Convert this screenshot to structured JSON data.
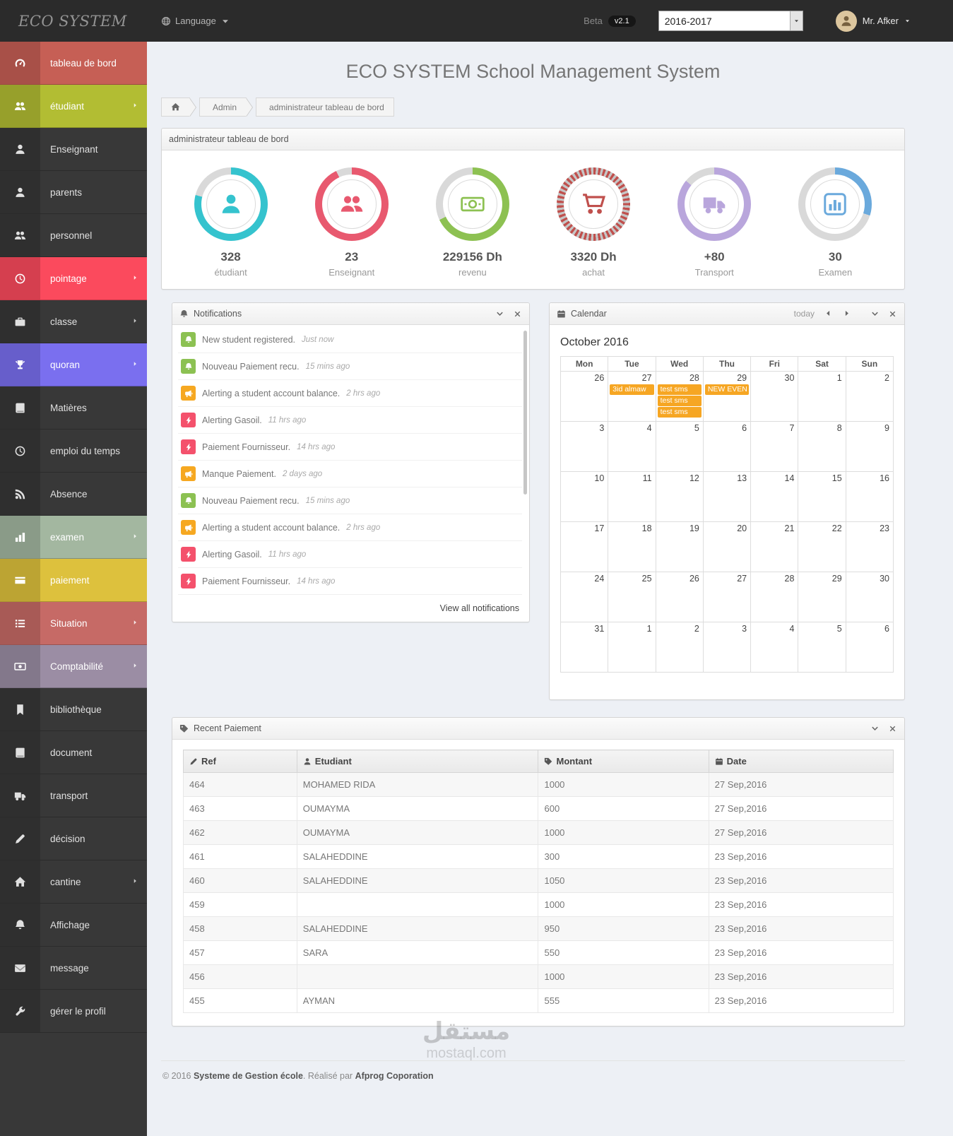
{
  "topbar": {
    "logo": "ECO SYSTEM",
    "language_label": "Language",
    "beta_label": "Beta",
    "version_badge": "v2.1",
    "year_select": "2016-2017",
    "user_name": "Mr. Afker"
  },
  "page": {
    "title": "ECO SYSTEM School Management System",
    "breadcrumb": [
      "Admin",
      "administrateur tableau de bord"
    ],
    "footer_prefix": "© 2016 ",
    "footer_bold1": "Systeme de Gestion école",
    "footer_mid": ". Réalisé par ",
    "footer_bold2": "Afprog Coporation",
    "watermark_ar": "مستقل",
    "watermark_en": "mostaql.com"
  },
  "sidebar": {
    "items": [
      {
        "label": "tableau de bord",
        "icon": "gauge",
        "bg": "#c65f55",
        "arrow": false
      },
      {
        "label": "étudiant",
        "icon": "users",
        "bg": "#b2bd33",
        "arrow": true
      },
      {
        "label": "Enseignant",
        "icon": "user",
        "bg": "",
        "arrow": false
      },
      {
        "label": "parents",
        "icon": "user",
        "bg": "",
        "arrow": false
      },
      {
        "label": "personnel",
        "icon": "users",
        "bg": "",
        "arrow": false
      },
      {
        "label": "pointage",
        "icon": "clock",
        "bg": "#fb4a5d",
        "arrow": true
      },
      {
        "label": "classe",
        "icon": "briefcase",
        "bg": "",
        "arrow": true
      },
      {
        "label": "quoran",
        "icon": "trophy",
        "bg": "#7a6fef",
        "arrow": true
      },
      {
        "label": "Matières",
        "icon": "book",
        "bg": "",
        "arrow": false
      },
      {
        "label": "emploi du temps",
        "icon": "clock",
        "bg": "",
        "arrow": false
      },
      {
        "label": "Absence",
        "icon": "rss",
        "bg": "",
        "arrow": false
      },
      {
        "label": "examen",
        "icon": "chart",
        "bg": "#a3b7a0",
        "arrow": true
      },
      {
        "label": "paiement",
        "icon": "card",
        "bg": "#ddc13d",
        "arrow": false
      },
      {
        "label": "Situation",
        "icon": "list",
        "bg": "#c66a66",
        "arrow": true
      },
      {
        "label": "Comptabilité",
        "icon": "money",
        "bg": "#9b8da4",
        "arrow": true
      },
      {
        "label": "bibliothèque",
        "icon": "bookmark",
        "bg": "",
        "arrow": false
      },
      {
        "label": "document",
        "icon": "book",
        "bg": "",
        "arrow": false
      },
      {
        "label": "transport",
        "icon": "truck",
        "bg": "",
        "arrow": false
      },
      {
        "label": "décision",
        "icon": "pen",
        "bg": "",
        "arrow": false
      },
      {
        "label": "cantine",
        "icon": "home",
        "bg": "",
        "arrow": true
      },
      {
        "label": "Affichage",
        "icon": "bell",
        "bg": "",
        "arrow": false
      },
      {
        "label": "message",
        "icon": "envelope",
        "bg": "",
        "arrow": false
      },
      {
        "label": "gérer le profil",
        "icon": "wrench",
        "bg": "",
        "arrow": false
      }
    ]
  },
  "dashboard": {
    "panel_title": "administrateur tableau de bord",
    "stats": [
      {
        "value": "328",
        "label": "étudiant",
        "icon": "user",
        "color": "#35c3ce",
        "pct": 79
      },
      {
        "value": "23",
        "label": "Enseignant",
        "icon": "users",
        "color": "#e8596f",
        "pct": 93
      },
      {
        "value": "229156 Dh",
        "label": "revenu",
        "icon": "banknote",
        "color": "#8dc152",
        "pct": 68
      },
      {
        "value": "3320 Dh",
        "label": "achat",
        "icon": "cart",
        "color": "#c0504d",
        "pct": 100,
        "pattern": true
      },
      {
        "value": "+80",
        "label": "Transport",
        "icon": "truck",
        "color": "#b9a6dc",
        "pct": 86
      },
      {
        "value": "30",
        "label": "Examen",
        "icon": "chartboard",
        "color": "#6aa9dc",
        "pct": 30
      }
    ]
  },
  "notifications": {
    "title": "Notifications",
    "view_all": "View all notifications",
    "items": [
      {
        "icon": "bell",
        "color": "#8cc152",
        "text": "New student registered.",
        "time": "Just now"
      },
      {
        "icon": "bell",
        "color": "#8cc152",
        "text": "Nouveau Paiement recu.",
        "time": "15 mins ago"
      },
      {
        "icon": "bullhorn",
        "color": "#f6a821",
        "text": "Alerting a student account balance.",
        "time": "2 hrs ago"
      },
      {
        "icon": "bolt",
        "color": "#f4516c",
        "text": "Alerting Gasoil.",
        "time": "11 hrs ago"
      },
      {
        "icon": "bolt",
        "color": "#f4516c",
        "text": "Paiement Fournisseur.",
        "time": "14 hrs ago"
      },
      {
        "icon": "bullhorn",
        "color": "#f6a821",
        "text": "Manque Paiement.",
        "time": "2 days ago"
      },
      {
        "icon": "bell",
        "color": "#8cc152",
        "text": "Nouveau Paiement recu.",
        "time": "15 mins ago"
      },
      {
        "icon": "bullhorn",
        "color": "#f6a821",
        "text": "Alerting a student account balance.",
        "time": "2 hrs ago"
      },
      {
        "icon": "bolt",
        "color": "#f4516c",
        "text": "Alerting Gasoil.",
        "time": "11 hrs ago"
      },
      {
        "icon": "bolt",
        "color": "#f4516c",
        "text": "Paiement Fournisseur.",
        "time": "14 hrs ago"
      }
    ]
  },
  "calendar": {
    "title": "Calendar",
    "today_label": "today",
    "month_label": "October 2016",
    "event_color": "#f6a623",
    "day_headers": [
      "Mon",
      "Tue",
      "Wed",
      "Thu",
      "Fri",
      "Sat",
      "Sun"
    ],
    "weeks": [
      [
        {
          "d": "26",
          "muted": true
        },
        {
          "d": "27",
          "muted": true,
          "ev": [
            "3id almaw"
          ]
        },
        {
          "d": "28",
          "muted": true,
          "ev": [
            "test sms",
            "test sms",
            "test sms"
          ]
        },
        {
          "d": "29",
          "muted": true,
          "ev": [
            "NEW EVEN"
          ]
        },
        {
          "d": "30",
          "muted": true
        },
        {
          "d": "1"
        },
        {
          "d": "2"
        }
      ],
      [
        {
          "d": "3"
        },
        {
          "d": "4"
        },
        {
          "d": "5"
        },
        {
          "d": "6"
        },
        {
          "d": "7"
        },
        {
          "d": "8"
        },
        {
          "d": "9"
        }
      ],
      [
        {
          "d": "10"
        },
        {
          "d": "11"
        },
        {
          "d": "12"
        },
        {
          "d": "13"
        },
        {
          "d": "14"
        },
        {
          "d": "15"
        },
        {
          "d": "16"
        }
      ],
      [
        {
          "d": "17"
        },
        {
          "d": "18"
        },
        {
          "d": "19"
        },
        {
          "d": "20"
        },
        {
          "d": "21"
        },
        {
          "d": "22"
        },
        {
          "d": "23"
        }
      ],
      [
        {
          "d": "24"
        },
        {
          "d": "25"
        },
        {
          "d": "26"
        },
        {
          "d": "27"
        },
        {
          "d": "28"
        },
        {
          "d": "29"
        },
        {
          "d": "30"
        }
      ],
      [
        {
          "d": "31"
        },
        {
          "d": "1",
          "muted": true
        },
        {
          "d": "2",
          "muted": true
        },
        {
          "d": "3",
          "muted": true
        },
        {
          "d": "4",
          "muted": true
        },
        {
          "d": "5",
          "muted": true
        },
        {
          "d": "6",
          "muted": true
        }
      ]
    ]
  },
  "payments": {
    "title": "Recent Paiement",
    "columns": [
      {
        "label": "Ref",
        "icon": "pen"
      },
      {
        "label": "Etudiant",
        "icon": "user"
      },
      {
        "label": "Montant",
        "icon": "tag"
      },
      {
        "label": "Date",
        "icon": "calendar"
      }
    ],
    "rows": [
      [
        "464",
        "MOHAMED RIDA",
        "1000",
        "27 Sep,2016"
      ],
      [
        "463",
        "OUMAYMA",
        "600",
        "27 Sep,2016"
      ],
      [
        "462",
        "OUMAYMA",
        "1000",
        "27 Sep,2016"
      ],
      [
        "461",
        "SALAHEDDINE",
        "300",
        "23 Sep,2016"
      ],
      [
        "460",
        "SALAHEDDINE",
        "1050",
        "23 Sep,2016"
      ],
      [
        "459",
        "",
        "1000",
        "23 Sep,2016"
      ],
      [
        "458",
        "SALAHEDDINE",
        "950",
        "23 Sep,2016"
      ],
      [
        "457",
        "SARA",
        "550",
        "23 Sep,2016"
      ],
      [
        "456",
        "",
        "1000",
        "23 Sep,2016"
      ],
      [
        "455",
        "AYMAN",
        "555",
        "23 Sep,2016"
      ]
    ]
  }
}
